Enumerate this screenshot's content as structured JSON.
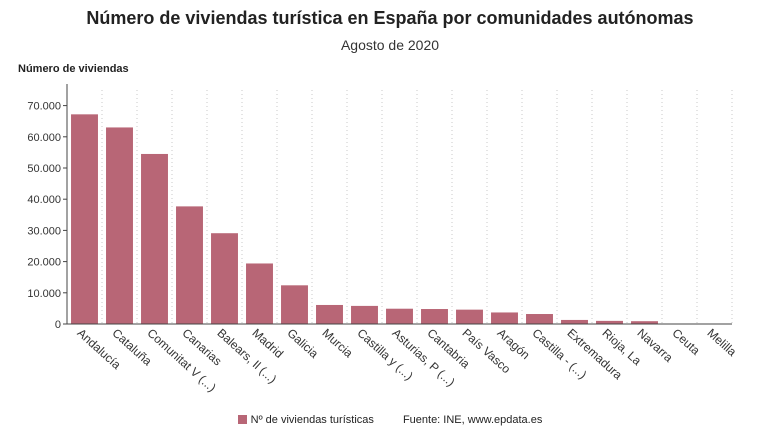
{
  "title": "Número de viviendas turística en España por comunidades autónomas",
  "subtitle": "Agosto de 2020",
  "legend_label": "Nº de viviendas turísticas",
  "source": "Fuente: INE, www.epdata.es",
  "bar_color": "#b86676",
  "chart_data": {
    "type": "bar",
    "title": "Número de viviendas turística en España por comunidades autónomas",
    "subtitle": "Agosto de 2020",
    "ylabel": "Número de viviendas",
    "xlabel": "",
    "ylim": [
      0,
      75000
    ],
    "yticks": [
      0,
      10000,
      20000,
      30000,
      40000,
      50000,
      60000,
      70000
    ],
    "ytick_labels": [
      "0",
      "10.000",
      "20.000",
      "30.000",
      "40.000",
      "50.000",
      "60.000",
      "70.000"
    ],
    "grid": "vertical dotted",
    "legend": "bottom",
    "categories": [
      "Andalucía",
      "Cataluña",
      "Comunitat V (...)",
      "Canarias",
      "Balears, Il (...)",
      "Madrid",
      "Galicia",
      "Murcia",
      "Castilla y (...)",
      "Asturias, P (...)",
      "Cantabria",
      "País Vasco",
      "Aragón",
      "Castilla - (...)",
      "Extremadura",
      "Rioja, La",
      "Navarra",
      "Ceuta",
      "Melilla"
    ],
    "series": [
      {
        "name": "Nº de viviendas turísticas",
        "values": [
          67200,
          63000,
          54500,
          37700,
          29100,
          19400,
          12400,
          6100,
          5800,
          4900,
          4800,
          4600,
          3700,
          3200,
          1300,
          1000,
          900,
          100,
          100
        ]
      }
    ]
  }
}
